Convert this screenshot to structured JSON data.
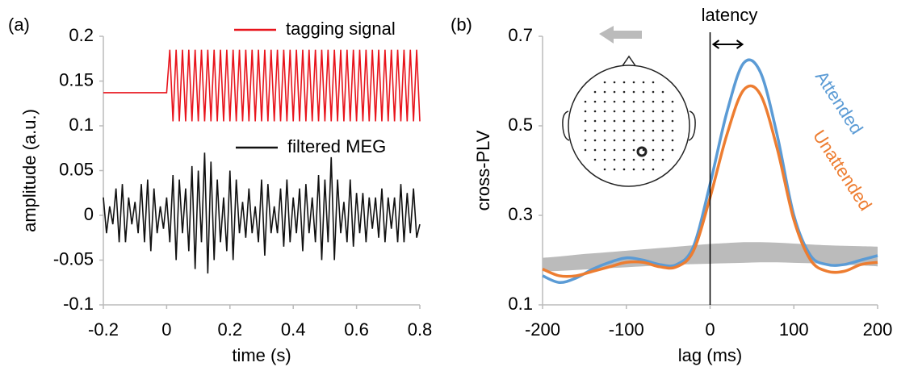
{
  "chart_data": [
    {
      "type": "line",
      "panel_label": "(a)",
      "xlabel": "time (s)",
      "ylabel": "amplitude (a.u.)",
      "xlim": [
        -0.2,
        0.8
      ],
      "xticks": [
        -0.2,
        0,
        0.2,
        0.4,
        0.6,
        0.8
      ],
      "ylim": [
        -0.1,
        0.2
      ],
      "yticks": [
        -0.1,
        -0.05,
        0,
        0.05,
        0.1,
        0.15,
        0.2
      ],
      "x": [
        -0.2,
        -0.19,
        -0.18,
        -0.17,
        -0.16,
        -0.15,
        -0.14,
        -0.13,
        -0.12,
        -0.11,
        -0.1,
        -0.09,
        -0.08,
        -0.07,
        -0.06,
        -0.05,
        -0.04,
        -0.03,
        -0.02,
        -0.01,
        0,
        0.01,
        0.02,
        0.03,
        0.04,
        0.05,
        0.06,
        0.07,
        0.08,
        0.09,
        0.1,
        0.11,
        0.12,
        0.13,
        0.14,
        0.15,
        0.16,
        0.17,
        0.18,
        0.19,
        0.2,
        0.21,
        0.22,
        0.23,
        0.24,
        0.25,
        0.26,
        0.27,
        0.28,
        0.29,
        0.3,
        0.31,
        0.32,
        0.33,
        0.34,
        0.35,
        0.36,
        0.37,
        0.38,
        0.39,
        0.4,
        0.41,
        0.42,
        0.43,
        0.44,
        0.45,
        0.46,
        0.47,
        0.48,
        0.49,
        0.5,
        0.51,
        0.52,
        0.53,
        0.54,
        0.55,
        0.56,
        0.57,
        0.58,
        0.59,
        0.6,
        0.61,
        0.62,
        0.63,
        0.64,
        0.65,
        0.66,
        0.67,
        0.68,
        0.69,
        0.7,
        0.71,
        0.72,
        0.73,
        0.74,
        0.75,
        0.76,
        0.77,
        0.78,
        0.79,
        0.8
      ],
      "series": [
        {
          "name": "tagging signal",
          "color": "#e8141c",
          "values": [
            0.137,
            0.137,
            0.137,
            0.137,
            0.137,
            0.137,
            0.137,
            0.137,
            0.137,
            0.137,
            0.137,
            0.137,
            0.137,
            0.137,
            0.137,
            0.137,
            0.137,
            0.137,
            0.137,
            0.137,
            0.137,
            0.185,
            0.105,
            0.185,
            0.105,
            0.185,
            0.105,
            0.185,
            0.105,
            0.185,
            0.105,
            0.185,
            0.105,
            0.185,
            0.105,
            0.185,
            0.105,
            0.185,
            0.105,
            0.185,
            0.105,
            0.185,
            0.105,
            0.185,
            0.105,
            0.185,
            0.105,
            0.185,
            0.105,
            0.185,
            0.105,
            0.185,
            0.105,
            0.185,
            0.105,
            0.185,
            0.105,
            0.185,
            0.105,
            0.185,
            0.105,
            0.185,
            0.105,
            0.185,
            0.105,
            0.185,
            0.105,
            0.185,
            0.105,
            0.185,
            0.105,
            0.185,
            0.105,
            0.185,
            0.105,
            0.185,
            0.105,
            0.185,
            0.105,
            0.185,
            0.105,
            0.185,
            0.105,
            0.185,
            0.105,
            0.185,
            0.105,
            0.185,
            0.105,
            0.185,
            0.105,
            0.185,
            0.105,
            0.185,
            0.105,
            0.185,
            0.105,
            0.185,
            0.105,
            0.185,
            0.105
          ]
        },
        {
          "name": "filtered MEG",
          "color": "#111111",
          "values": [
            0.02,
            -0.02,
            0.01,
            -0.01,
            0.03,
            -0.03,
            0.035,
            -0.03,
            0.02,
            -0.01,
            0.015,
            -0.02,
            0.035,
            -0.03,
            0.04,
            -0.04,
            0.03,
            -0.02,
            0.01,
            -0.015,
            0.02,
            -0.03,
            0.045,
            -0.05,
            0.04,
            -0.02,
            0.03,
            -0.04,
            0.055,
            -0.06,
            0.05,
            -0.03,
            0.07,
            -0.065,
            0.06,
            -0.05,
            0.04,
            -0.03,
            0.02,
            -0.04,
            0.05,
            -0.05,
            0.04,
            -0.02,
            0.015,
            -0.025,
            0.03,
            -0.02,
            0.01,
            -0.03,
            0.04,
            -0.045,
            0.035,
            -0.02,
            0.01,
            -0.02,
            0.03,
            -0.035,
            0.04,
            -0.03,
            0.02,
            -0.02,
            0.03,
            -0.04,
            0.035,
            -0.02,
            0.02,
            -0.03,
            0.045,
            -0.05,
            0.04,
            -0.03,
            0.065,
            -0.05,
            0.04,
            -0.02,
            0.015,
            -0.03,
            0.04,
            -0.035,
            0.025,
            -0.02,
            0.025,
            -0.03,
            0.02,
            -0.015,
            0.02,
            -0.025,
            0.03,
            -0.03,
            0.02,
            -0.015,
            0.02,
            -0.03,
            0.035,
            -0.03,
            0.025,
            -0.02,
            0.03,
            -0.025,
            -0.01
          ]
        }
      ]
    },
    {
      "type": "line",
      "panel_label": "(b)",
      "xlabel": "lag (ms)",
      "ylabel": "cross-PLV",
      "annotation": "latency",
      "xlim": [
        -200,
        200
      ],
      "xticks": [
        -200,
        -100,
        0,
        100,
        200
      ],
      "ylim": [
        0.1,
        0.7
      ],
      "yticks": [
        0.1,
        0.3,
        0.5,
        0.7
      ],
      "x": [
        -200,
        -180,
        -160,
        -140,
        -120,
        -100,
        -80,
        -60,
        -40,
        -20,
        0,
        20,
        40,
        60,
        80,
        100,
        120,
        140,
        160,
        180,
        200
      ],
      "band": {
        "color": "#bbbbbb",
        "lower": [
          0.175,
          0.176,
          0.178,
          0.18,
          0.182,
          0.184,
          0.186,
          0.188,
          0.19,
          0.191,
          0.192,
          0.193,
          0.194,
          0.195,
          0.195,
          0.194,
          0.193,
          0.192,
          0.19,
          0.188,
          0.186
        ],
        "upper": [
          0.205,
          0.208,
          0.212,
          0.215,
          0.218,
          0.221,
          0.224,
          0.227,
          0.23,
          0.233,
          0.236,
          0.238,
          0.24,
          0.24,
          0.239,
          0.237,
          0.235,
          0.233,
          0.232,
          0.231,
          0.23
        ]
      },
      "series": [
        {
          "name": "Attended",
          "color": "#5b9bd5",
          "values": [
            0.165,
            0.15,
            0.16,
            0.18,
            0.195,
            0.205,
            0.2,
            0.19,
            0.19,
            0.23,
            0.37,
            0.53,
            0.64,
            0.62,
            0.48,
            0.3,
            0.21,
            0.19,
            0.19,
            0.2,
            0.21
          ]
        },
        {
          "name": "Unattended",
          "color": "#ed7d31",
          "values": [
            0.18,
            0.165,
            0.165,
            0.175,
            0.185,
            0.195,
            0.195,
            0.185,
            0.185,
            0.22,
            0.34,
            0.48,
            0.58,
            0.57,
            0.45,
            0.29,
            0.2,
            0.175,
            0.175,
            0.19,
            0.195
          ]
        }
      ]
    }
  ]
}
